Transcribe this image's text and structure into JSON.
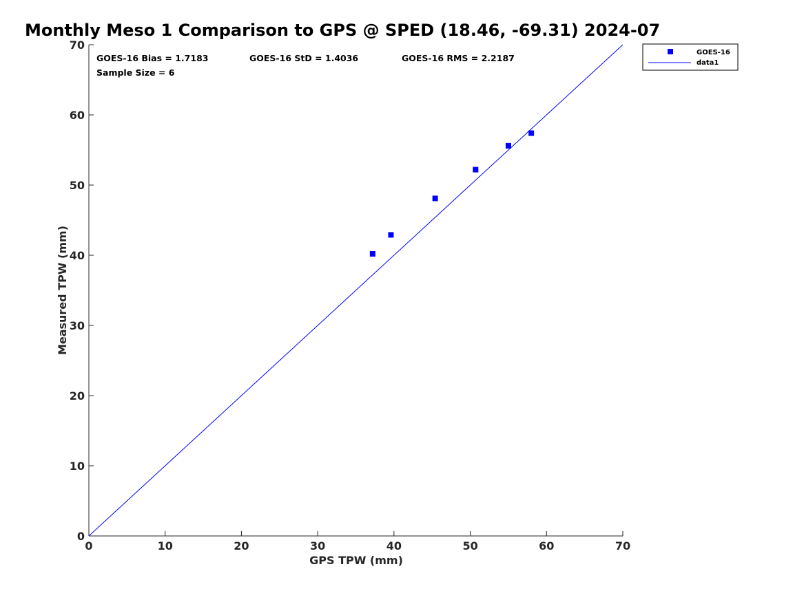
{
  "chart_data": {
    "type": "scatter",
    "title": "Monthly Meso 1 Comparison to GPS @ SPED (18.46, -69.31) 2024-07",
    "xlabel": "GPS TPW (mm)",
    "ylabel": "Measured TPW (mm)",
    "xlim": [
      0,
      70
    ],
    "ylim": [
      0,
      70
    ],
    "xticks": [
      "0",
      "10",
      "20",
      "30",
      "40",
      "50",
      "60",
      "70"
    ],
    "yticks": [
      "0",
      "10",
      "20",
      "30",
      "40",
      "50",
      "60",
      "70"
    ],
    "grid": false,
    "legend_position": "outside top-right",
    "stats": {
      "bias": "GOES-16 Bias = 1.7183",
      "std": "GOES-16 StD = 1.4036",
      "rms": "GOES-16 RMS = 2.2187",
      "sample": "Sample Size = 6"
    },
    "series": [
      {
        "name": "GOES-16",
        "kind": "scatter",
        "marker": "square",
        "color": "#0000ff",
        "x": [
          37.2,
          39.6,
          45.4,
          50.7,
          55.0,
          58.0
        ],
        "y": [
          40.2,
          42.9,
          48.1,
          52.2,
          55.6,
          57.4
        ]
      },
      {
        "name": "data1",
        "kind": "line",
        "color": "#0000ff",
        "x": [
          0,
          70
        ],
        "y": [
          0,
          70
        ]
      }
    ]
  }
}
